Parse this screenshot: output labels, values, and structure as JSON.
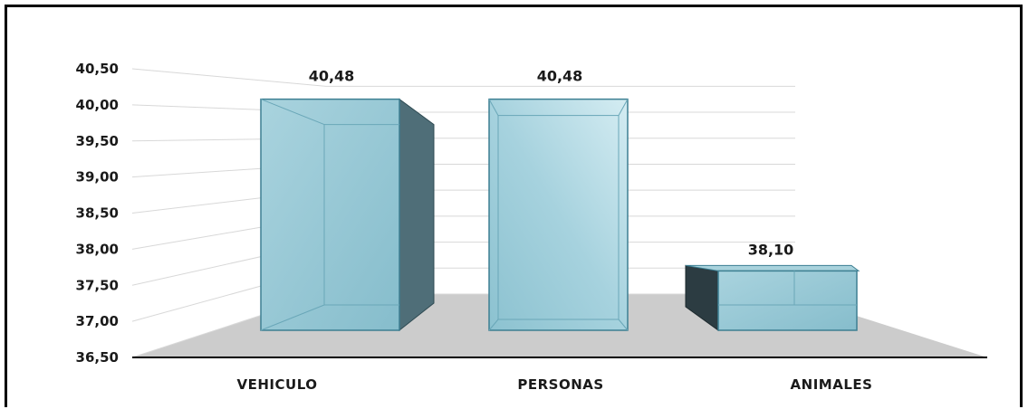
{
  "chart_data": {
    "type": "bar",
    "categories": [
      "VEHICULO",
      "PERSONAS",
      "ANIMALES"
    ],
    "values": [
      40.48,
      40.48,
      38.1
    ],
    "value_labels": [
      "40,48",
      "40,48",
      "38,10"
    ],
    "ylim": [
      36.5,
      40.5
    ],
    "yticks": [
      36.5,
      37.0,
      37.5,
      38.0,
      38.5,
      39.0,
      39.5,
      40.0,
      40.5
    ],
    "ytick_labels": [
      "36,50",
      "37,00",
      "37,50",
      "38,00",
      "38,50",
      "39,00",
      "39,50",
      "40,00",
      "40,50"
    ],
    "title": "",
    "xlabel": "",
    "ylabel": "",
    "grid": true,
    "style": "3d",
    "colors": {
      "bar_front": "#8ec3d1",
      "bar_edge": "#3d7f92",
      "bar_side_dark": "#4f6e78",
      "bar_side_darkest": "#2c3c42",
      "floor": "#cccccc",
      "grid": "#d8d8d8"
    }
  }
}
